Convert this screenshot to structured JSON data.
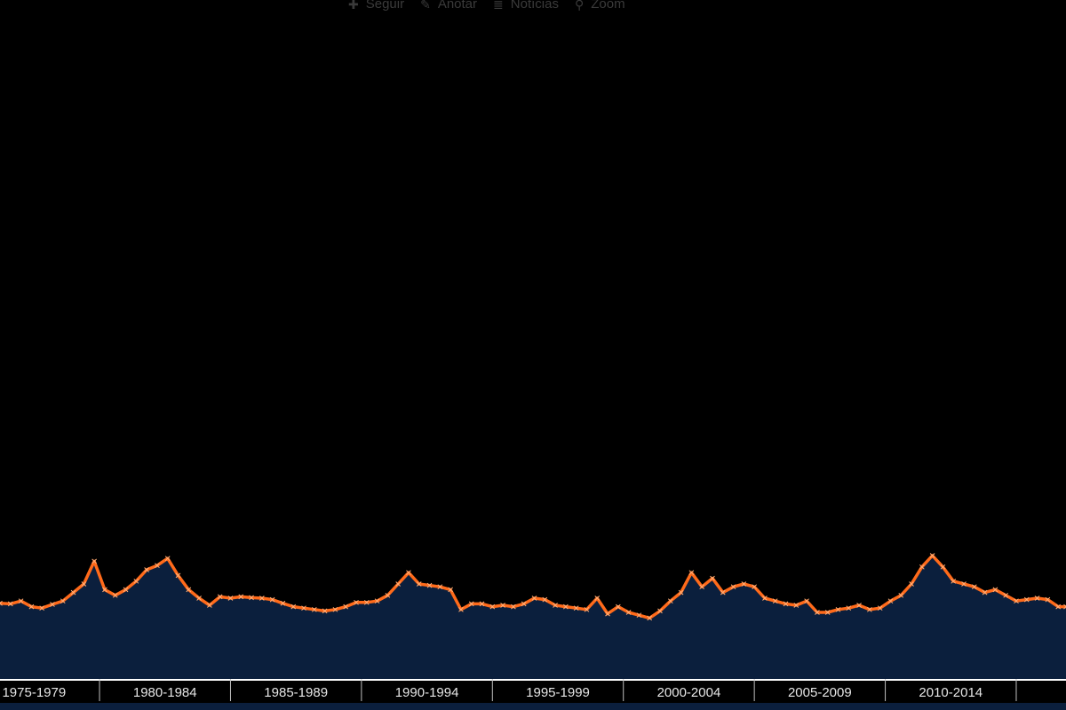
{
  "toolbar": {
    "items": [
      {
        "label": "Seguir",
        "icon": "plus-icon"
      },
      {
        "label": "Anotar",
        "icon": "pencil-icon"
      },
      {
        "label": "Notícias",
        "icon": "list-icon"
      },
      {
        "label": "Zoom",
        "icon": "magnifier-icon"
      }
    ]
  },
  "colors": {
    "background": "#000000",
    "line": "#ff6a1a",
    "area": "#0b1f3d",
    "axis_band": "#ffffff",
    "tick_label": "#e6e6e6"
  },
  "chart_data": {
    "type": "area",
    "title": "",
    "xlabel": "",
    "ylabel": "",
    "xlim": [
      1975.6,
      2016.3
    ],
    "ylim": [
      0,
      100
    ],
    "grid": false,
    "x_tick_labels": [
      "1975-1979",
      "1980-1984",
      "1985-1989",
      "1990-1994",
      "1995-1999",
      "2000-2004",
      "2005-2009",
      "2010-2014"
    ],
    "series": [
      {
        "x": [
          1975.6,
          1976.0,
          1976.4,
          1976.8,
          1977.2,
          1977.6,
          1978.0,
          1978.4,
          1978.8,
          1979.2,
          1979.6,
          1980.0,
          1980.4,
          1980.8,
          1981.2,
          1981.6,
          1982.0,
          1982.4,
          1982.8,
          1983.2,
          1983.6,
          1984.0,
          1984.4,
          1984.8,
          1985.2,
          1985.6,
          1986.0,
          1986.4,
          1986.8,
          1987.2,
          1987.6,
          1988.0,
          1988.4,
          1988.8,
          1989.2,
          1989.6,
          1990.0,
          1990.4,
          1990.8,
          1991.2,
          1991.6,
          1992.0,
          1992.4,
          1992.8,
          1993.2,
          1993.6,
          1994.0,
          1994.4,
          1994.8,
          1995.2,
          1995.6,
          1996.0,
          1996.4,
          1996.8,
          1997.2,
          1997.6,
          1998.0,
          1998.4,
          1998.8,
          1999.2,
          1999.6,
          2000.0,
          2000.4,
          2000.8,
          2001.2,
          2001.6,
          2002.0,
          2002.4,
          2002.8,
          2003.2,
          2003.6,
          2004.0,
          2004.4,
          2004.8,
          2005.2,
          2005.6,
          2006.0,
          2006.4,
          2006.8,
          2007.2,
          2007.6,
          2008.0,
          2008.4,
          2008.8,
          2009.2,
          2009.6,
          2010.0,
          2010.4,
          2010.8,
          2011.2,
          2011.6,
          2012.0,
          2012.4,
          2012.8,
          2013.2,
          2013.6,
          2014.0,
          2014.4,
          2014.8,
          2015.2,
          2015.6,
          2016.0,
          2016.3
        ],
        "y": [
          13.2,
          13.0,
          14.0,
          12.0,
          11.5,
          12.8,
          14.0,
          17.0,
          20.0,
          28.0,
          18.0,
          16.0,
          18.0,
          21.0,
          25.0,
          26.5,
          29.0,
          23.0,
          18.0,
          15.0,
          12.5,
          15.5,
          15.0,
          15.5,
          15.2,
          15.0,
          14.5,
          13.2,
          12.0,
          11.5,
          11.0,
          10.5,
          11.0,
          12.0,
          13.5,
          13.5,
          14.0,
          16.0,
          20.0,
          24.0,
          20.0,
          19.5,
          19.0,
          18.0,
          11.0,
          13.0,
          13.0,
          12.0,
          12.5,
          12.0,
          13.0,
          15.0,
          14.5,
          12.5,
          12.0,
          11.5,
          11.0,
          15.0,
          9.5,
          12.0,
          10.0,
          9.0,
          8.0,
          10.5,
          14.0,
          17.0,
          24.0,
          19.0,
          22.0,
          17.0,
          19.0,
          20.0,
          19.0,
          15.0,
          14.0,
          13.0,
          12.5,
          14.0,
          10.0,
          10.0,
          11.0,
          11.5,
          12.5,
          11.0,
          11.5,
          14.0,
          16.0,
          20.0,
          26.0,
          30.0,
          26.0,
          21.0,
          20.0,
          19.0,
          17.0,
          18.0,
          16.0,
          14.0,
          14.5,
          15.0,
          14.5,
          12.0,
          12.0
        ]
      }
    ]
  }
}
